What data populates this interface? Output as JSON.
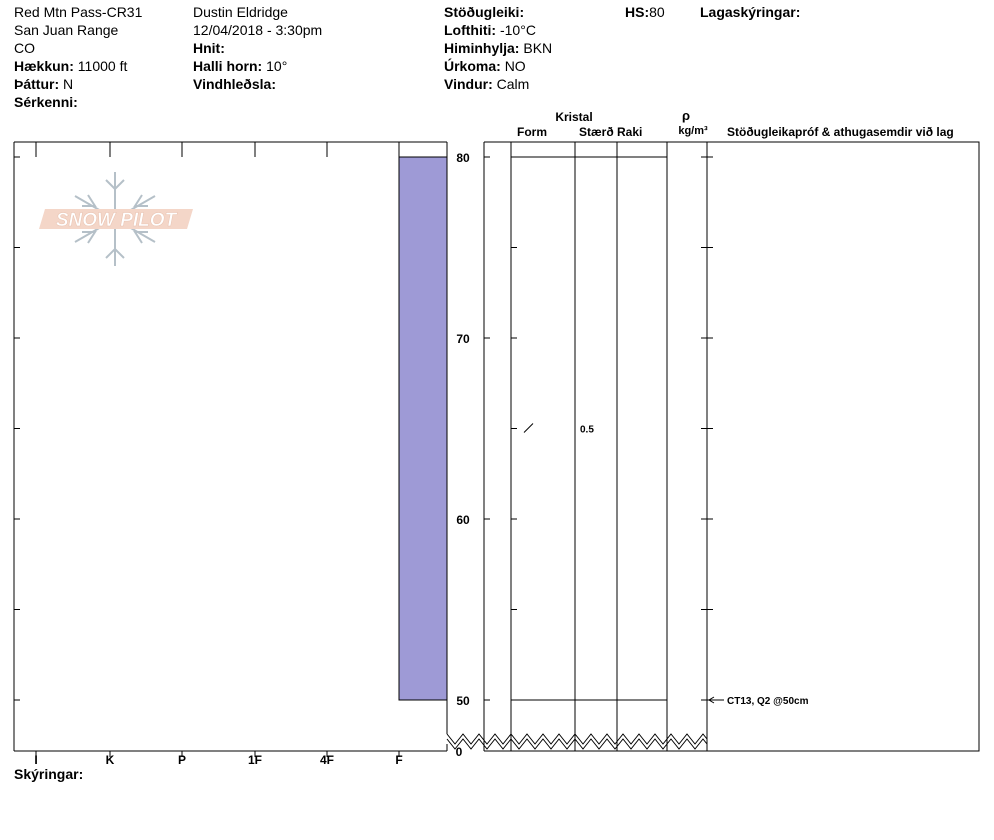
{
  "header": {
    "location": "Red Mtn Pass-CR31",
    "range": "San Juan Range",
    "state": "CO",
    "elevation_label": "Hækkun:",
    "elevation": "11000 ft",
    "aspect_label": "Þáttur:",
    "aspect": "N",
    "features_label": "Sérkenni:",
    "observer": "Dustin Eldridge",
    "datetime": "12/04/2018 - 3:30pm",
    "coords_label": "Hnit:",
    "slope_label": "Halli horn:",
    "slope": "10°",
    "wind_loading_label": "Vindhleðsla:",
    "stability_label": "Stöðugleiki:",
    "air_temp_label": "Lofthiti:",
    "air_temp": "-10°C",
    "sky_label": "Himinhylja:",
    "sky": "BKN",
    "precip_label": "Úrkoma:",
    "precip": "NO",
    "wind_label": "Vindur:",
    "wind": "Calm",
    "hs_label": "HS:",
    "hs": "80",
    "layer_notes_label": "Lagaskýringar:",
    "notes_label": "Skýringar:"
  },
  "columns": {
    "crystal": "Kristal",
    "form": "Form",
    "size": "Stærð",
    "moisture": "Raki",
    "rho": "ρ",
    "density_unit": "kg/m³",
    "tests": "Stöðugleikapróf & athugasemdir við lag"
  },
  "logo_text": "SNOW PILOT",
  "chart_data": {
    "type": "bar",
    "orientation": "horizontal",
    "y_axis": {
      "ticks": [
        50,
        60,
        70,
        80
      ],
      "break_bottom": 0,
      "range": [
        48,
        81
      ]
    },
    "x_axis": {
      "categories": [
        "I",
        "K",
        "P",
        "1F",
        "4F",
        "F"
      ]
    },
    "hardness_layers": [
      {
        "top": 80,
        "bottom": 50,
        "hardness": "F",
        "color": "#9e9ad6"
      }
    ],
    "crystal_layers": [
      {
        "top": 80,
        "bottom": 50,
        "form_symbol": "/",
        "form_height": 65,
        "size": "0.5"
      }
    ],
    "tests": [
      {
        "height": 50,
        "text": "CT13, Q2 @50cm"
      }
    ]
  }
}
